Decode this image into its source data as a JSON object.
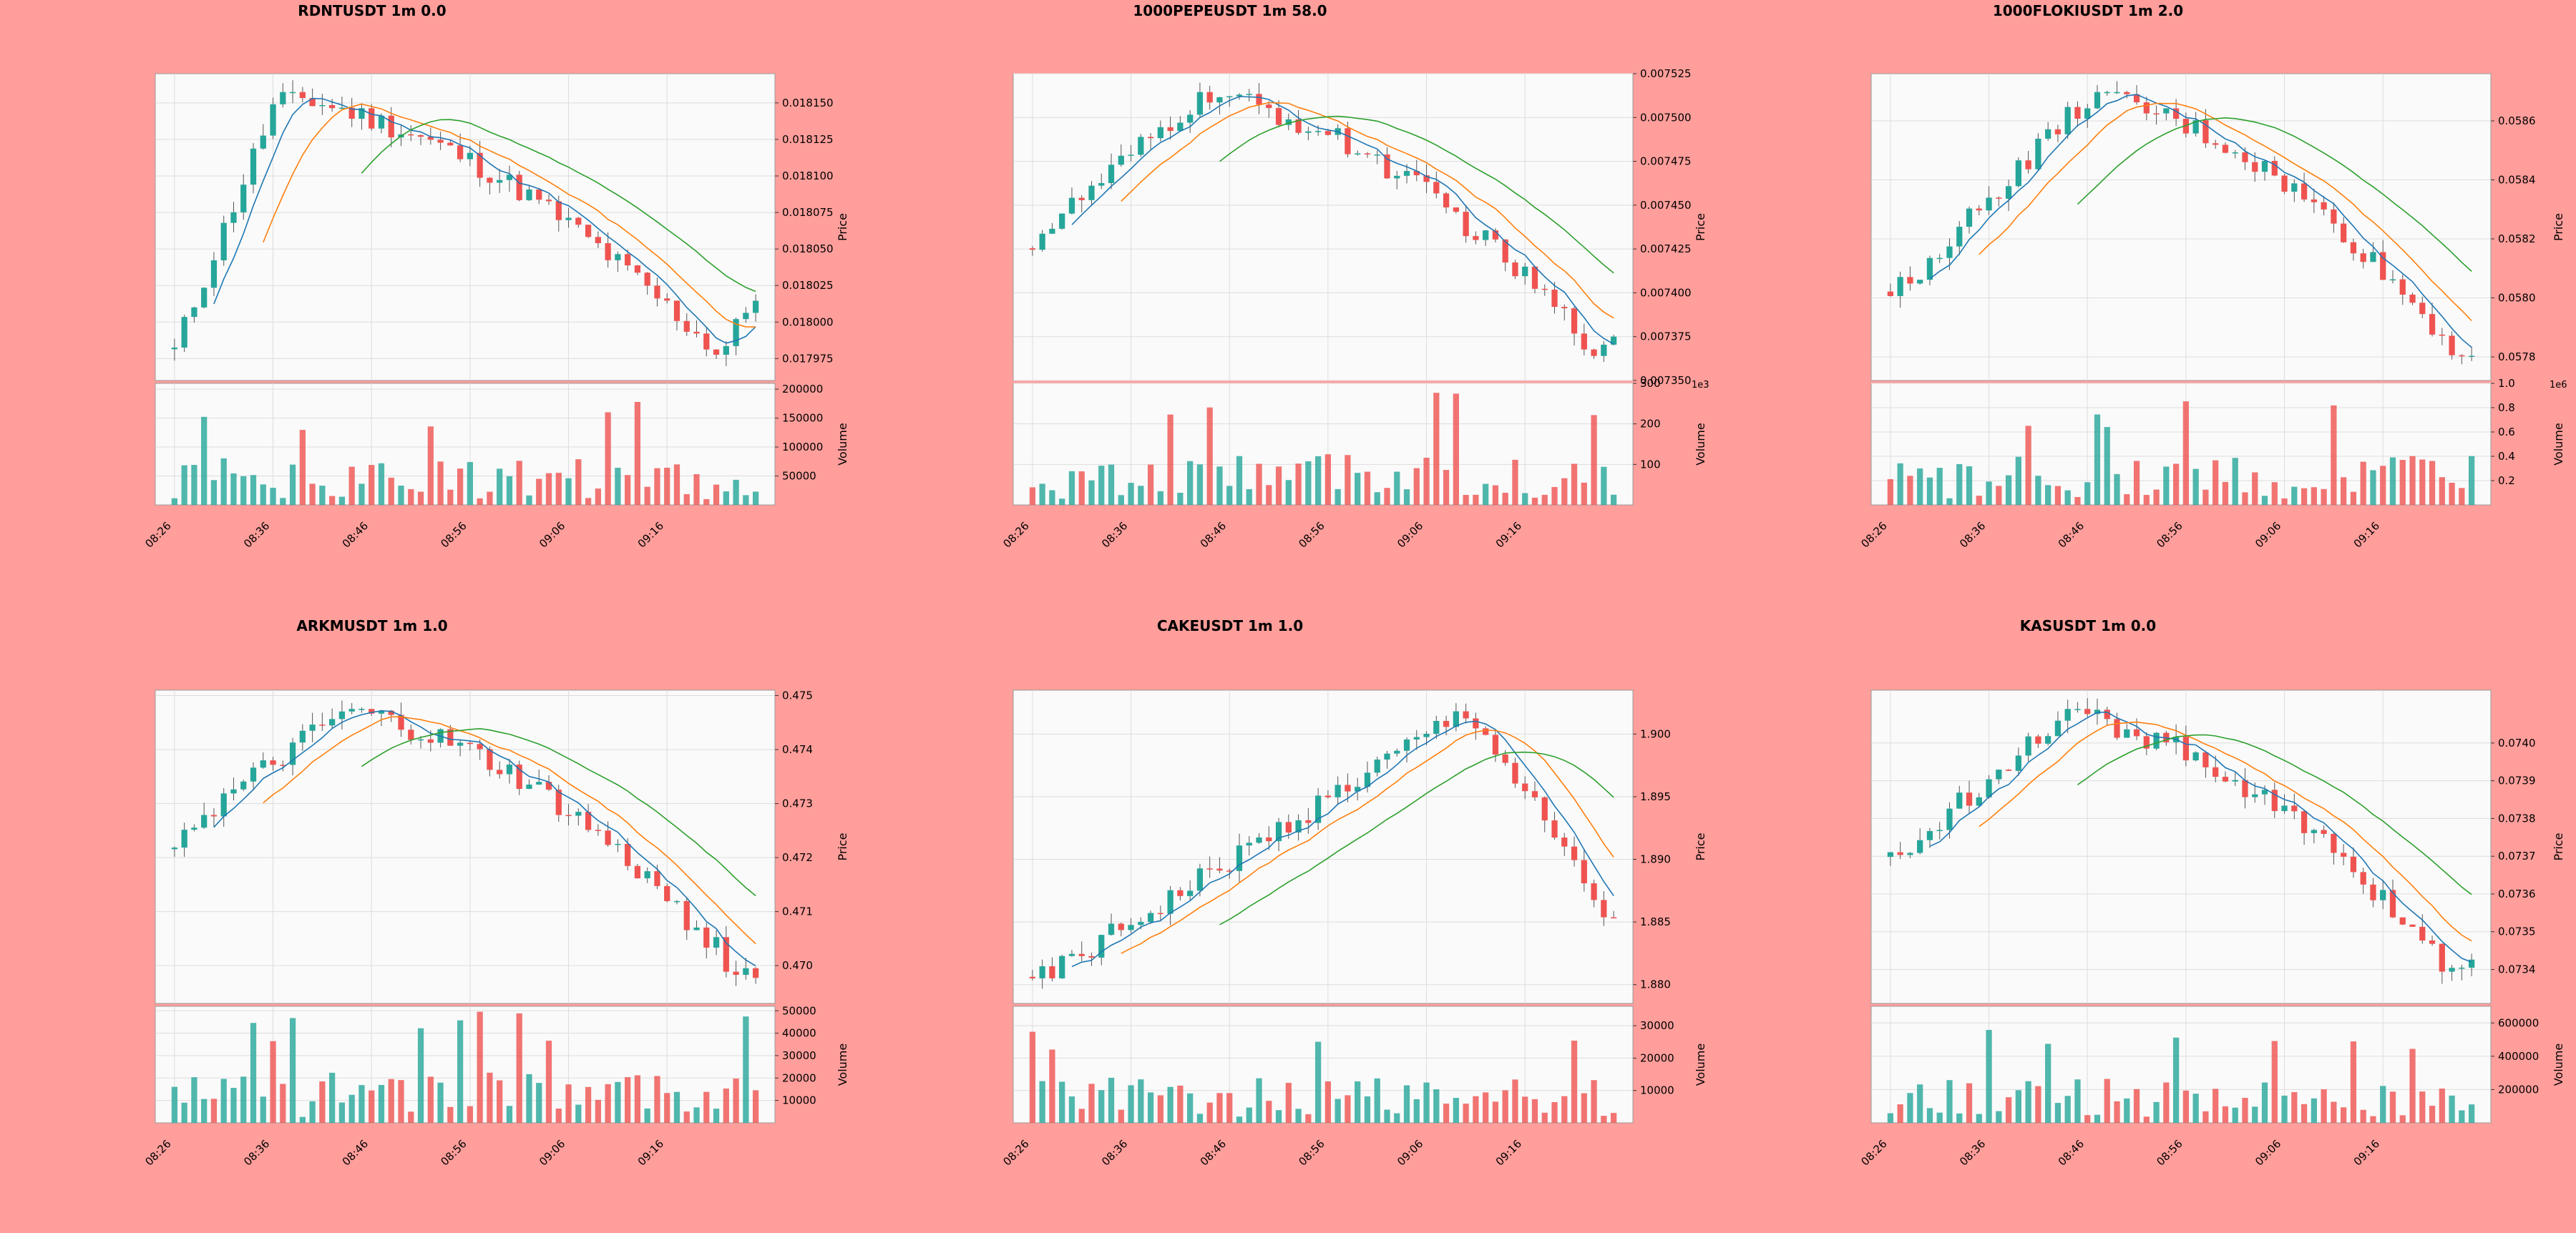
{
  "page": {
    "background": "#ff9e9b",
    "up_color": "#26a69a",
    "down_color": "#ef5350"
  },
  "chart_data": [
    {
      "type": "candlestick",
      "title": "RDNTUSDT 1m 0.0",
      "ylabel": "Price",
      "volume_label": "Volume",
      "x_ticks": [
        "08:26",
        "08:36",
        "08:46",
        "08:56",
        "09:06",
        "09:16"
      ],
      "price_ylim": [
        0.01796,
        0.01817
      ],
      "price_ticks": [
        "0.017975",
        "0.018000",
        "0.018025",
        "0.018050",
        "0.018075",
        "0.018100",
        "0.018125",
        "0.018150"
      ],
      "price_tick_values": [
        0.017975,
        0.018,
        0.018025,
        0.01805,
        0.018075,
        0.0181,
        0.018125,
        0.01815
      ],
      "volume_ylim": [
        0,
        210000
      ],
      "volume_ticks": [
        "50000",
        "100000",
        "150000",
        "200000"
      ],
      "volume_tick_values": [
        50000,
        100000,
        150000,
        200000
      ],
      "start": 0.01798,
      "end": 0.01802,
      "high_at": 0.18,
      "low_at": 0.94,
      "volume_max": 180000,
      "volume_multiplier": ""
    },
    {
      "type": "candlestick",
      "title": "1000PEPEUSDT 1m 58.0",
      "ylabel": "Price",
      "volume_label": "Volume",
      "x_ticks": [
        "08:26",
        "08:36",
        "08:46",
        "08:56",
        "09:06",
        "09:16"
      ],
      "price_ylim": [
        0.00735,
        0.007525
      ],
      "price_ticks": [
        "0.007350",
        "0.007375",
        "0.007400",
        "0.007425",
        "0.007450",
        "0.007475",
        "0.007500",
        "0.007525"
      ],
      "price_tick_values": [
        0.00735,
        0.007375,
        0.0074,
        0.007425,
        0.00745,
        0.007475,
        0.0075,
        0.007525
      ],
      "volume_ylim": [
        0,
        300
      ],
      "volume_ticks": [
        "100",
        "200",
        "300"
      ],
      "volume_tick_values": [
        100,
        200,
        300
      ],
      "start": 0.00743,
      "end": 0.00737,
      "high_at": 0.3,
      "low_at": 0.98,
      "volume_max": 290,
      "volume_multiplier": "1e3"
    },
    {
      "type": "candlestick",
      "title": "1000FLOKIUSDT 1m 2.0",
      "ylabel": "Price",
      "volume_label": "Volume",
      "x_ticks": [
        "08:26",
        "08:36",
        "08:46",
        "08:56",
        "09:06",
        "09:16"
      ],
      "price_ylim": [
        0.05772,
        0.05876
      ],
      "price_ticks": [
        "0.0578",
        "0.0580",
        "0.0582",
        "0.0584",
        "0.0586"
      ],
      "price_tick_values": [
        0.0578,
        0.058,
        0.0582,
        0.0584,
        0.0586
      ],
      "volume_ylim": [
        0,
        1.0
      ],
      "volume_ticks": [
        "0.2",
        "0.4",
        "0.6",
        "0.8",
        "1.0"
      ],
      "volume_tick_values": [
        0.2,
        0.4,
        0.6,
        0.8,
        1.0
      ],
      "start": 0.058,
      "end": 0.0578,
      "high_at": 0.35,
      "low_at": 0.98,
      "volume_max": 0.9,
      "volume_multiplier": "1e6"
    },
    {
      "type": "candlestick",
      "title": "ARKMUSDT 1m 1.0",
      "ylabel": "Price",
      "volume_label": "Volume",
      "x_ticks": [
        "08:26",
        "08:36",
        "08:46",
        "08:56",
        "09:06",
        "09:16"
      ],
      "price_ylim": [
        0.4693,
        0.4751
      ],
      "price_ticks": [
        "0.470",
        "0.471",
        "0.472",
        "0.473",
        "0.474",
        "0.475"
      ],
      "price_tick_values": [
        0.47,
        0.471,
        0.472,
        0.473,
        0.474,
        0.475
      ],
      "volume_ylim": [
        0,
        52000
      ],
      "volume_ticks": [
        "10000",
        "20000",
        "30000",
        "40000",
        "50000"
      ],
      "volume_tick_values": [
        10000,
        20000,
        30000,
        40000,
        50000
      ],
      "start": 0.4724,
      "end": 0.4699,
      "high_at": 0.3,
      "low_at": 0.98,
      "volume_max": 50000,
      "volume_multiplier": ""
    },
    {
      "type": "candlestick",
      "title": "CAKEUSDT 1m 1.0",
      "ylabel": "Price",
      "volume_label": "Volume",
      "x_ticks": [
        "08:26",
        "08:36",
        "08:46",
        "08:56",
        "09:06",
        "09:16"
      ],
      "price_ylim": [
        1.8785,
        1.9035
      ],
      "price_ticks": [
        "1.880",
        "1.885",
        "1.890",
        "1.895",
        "1.900"
      ],
      "price_tick_values": [
        1.88,
        1.885,
        1.89,
        1.895,
        1.9
      ],
      "volume_ylim": [
        0,
        36000
      ],
      "volume_ticks": [
        "10000",
        "20000",
        "30000"
      ],
      "volume_tick_values": [
        10000,
        20000,
        30000
      ],
      "start": 1.8805,
      "end": 1.8845,
      "high_at": 0.75,
      "low_at": 0.02,
      "volume_max": 31000,
      "volume_multiplier": ""
    },
    {
      "type": "candlestick",
      "title": "KASUSDT 1m 0.0",
      "ylabel": "Price",
      "volume_label": "Volume",
      "x_ticks": [
        "08:26",
        "08:36",
        "08:46",
        "08:56",
        "09:06",
        "09:16"
      ],
      "price_ylim": [
        0.07331,
        0.07414
      ],
      "price_ticks": [
        "0.0734",
        "0.0735",
        "0.0736",
        "0.0737",
        "0.0738",
        "0.0739",
        "0.0740"
      ],
      "price_tick_values": [
        0.0734,
        0.0735,
        0.0736,
        0.0737,
        0.0738,
        0.0739,
        0.074
      ],
      "volume_ylim": [
        0,
        700000
      ],
      "volume_ticks": [
        "200000",
        "400000",
        "600000"
      ],
      "volume_tick_values": [
        200000,
        400000,
        600000
      ],
      "start": 0.07368,
      "end": 0.07342,
      "high_at": 0.3,
      "low_at": 0.98,
      "volume_max": 620000,
      "volume_multiplier": ""
    }
  ]
}
